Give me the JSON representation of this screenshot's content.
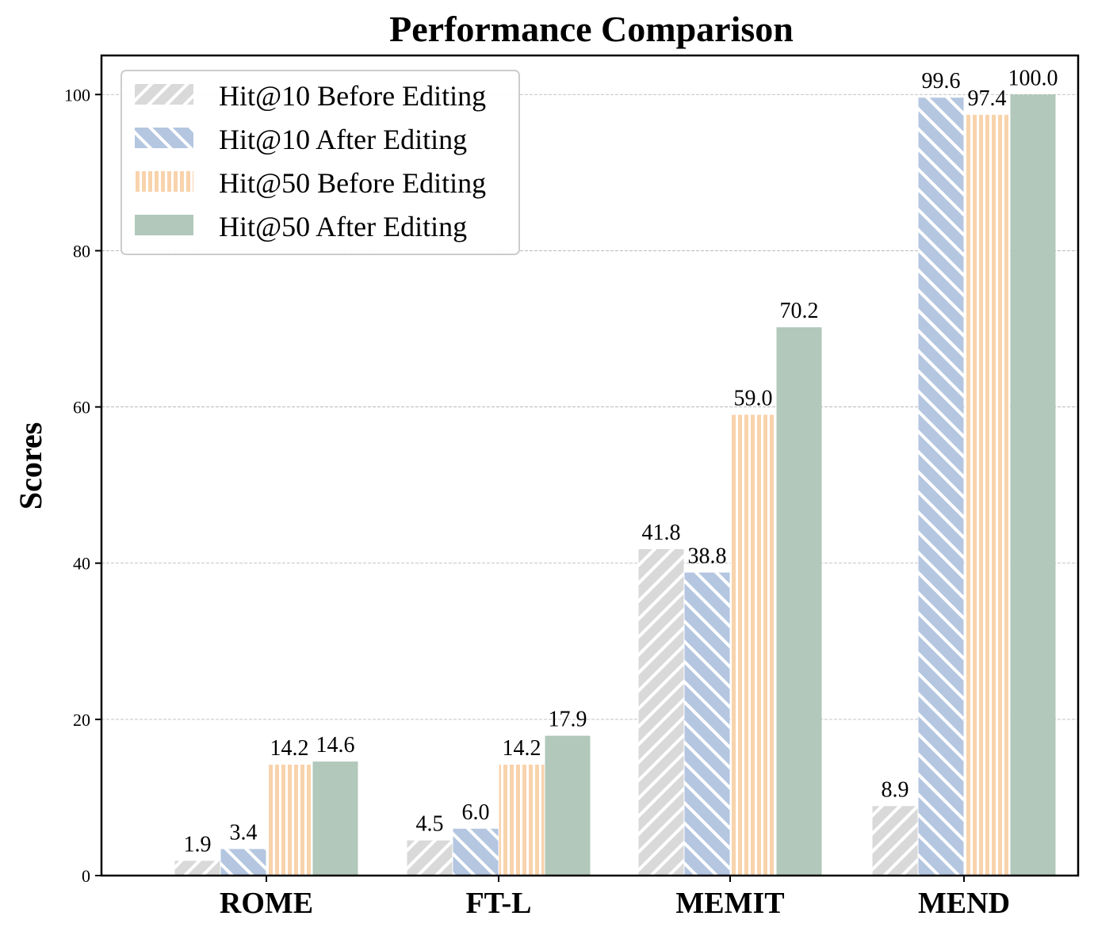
{
  "chart_data": {
    "type": "bar",
    "title": "Performance Comparison",
    "xlabel": "",
    "ylabel": "Scores",
    "categories": [
      "ROME",
      "FT-L",
      "MEMIT",
      "MEND"
    ],
    "ylim": [
      0,
      105
    ],
    "yticks": [
      0,
      20,
      40,
      60,
      80,
      100
    ],
    "grid": "y-dashed",
    "legend_position": "top-left",
    "series": [
      {
        "name": "Hit@10 Before Editing",
        "values": [
          1.9,
          4.5,
          41.8,
          8.9
        ],
        "color": "#d9d9d9",
        "hatch": "diag-forward"
      },
      {
        "name": "Hit@10 After Editing",
        "values": [
          3.4,
          6.0,
          38.8,
          99.6
        ],
        "color": "#b4c6e0",
        "hatch": "diag-back"
      },
      {
        "name": "Hit@50 Before Editing",
        "values": [
          14.2,
          14.2,
          59.0,
          97.4
        ],
        "color": "#f8d3ac",
        "hatch": "vertical"
      },
      {
        "name": "Hit@50 After Editing",
        "values": [
          14.6,
          17.9,
          70.2,
          100.0
        ],
        "color": "#b1c8bb",
        "hatch": "none"
      }
    ],
    "data_labels": [
      [
        "1.9",
        "4.5",
        "41.8",
        "8.9"
      ],
      [
        "3.4",
        "6.0",
        "38.8",
        "99.6"
      ],
      [
        "14.2",
        "14.2",
        "59.0",
        "97.4"
      ],
      [
        "14.6",
        "17.9",
        "70.2",
        "100.0"
      ]
    ]
  }
}
